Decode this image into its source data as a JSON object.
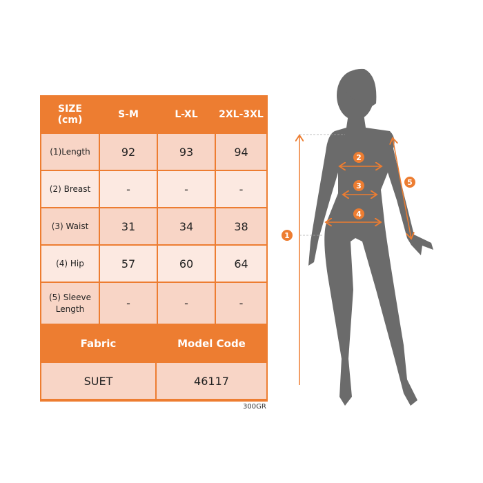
{
  "size_table": {
    "header": [
      "SIZE\n(cm)",
      "S-M",
      "L-XL",
      "2XL-3XL"
    ],
    "header_label_line1": "SIZE",
    "header_label_line2": "(cm)",
    "rows": [
      {
        "label": "(1)Length",
        "values": [
          "92",
          "93",
          "94"
        ]
      },
      {
        "label": "(2) Breast",
        "values": [
          "-",
          "-",
          "-"
        ]
      },
      {
        "label": "(3) Waist",
        "values": [
          "31",
          "34",
          "38"
        ]
      },
      {
        "label": "(4) Hip",
        "values": [
          "57",
          "60",
          "64"
        ]
      },
      {
        "label_line1": "(5) Sleeve",
        "label_line2": "Length",
        "values": [
          "-",
          "-",
          "-"
        ]
      }
    ]
  },
  "fabric_table": {
    "headers": [
      "Fabric",
      "Model Code"
    ],
    "values": [
      "SUET",
      "46117"
    ]
  },
  "note": "300GR",
  "figure": {
    "markers": [
      "1",
      "2",
      "3",
      "4",
      "5"
    ]
  },
  "colors": {
    "accent": "#ed7d31",
    "row_dark": "#f8d5c6",
    "row_light": "#fce9e1",
    "silhouette": "#6b6b6b"
  }
}
